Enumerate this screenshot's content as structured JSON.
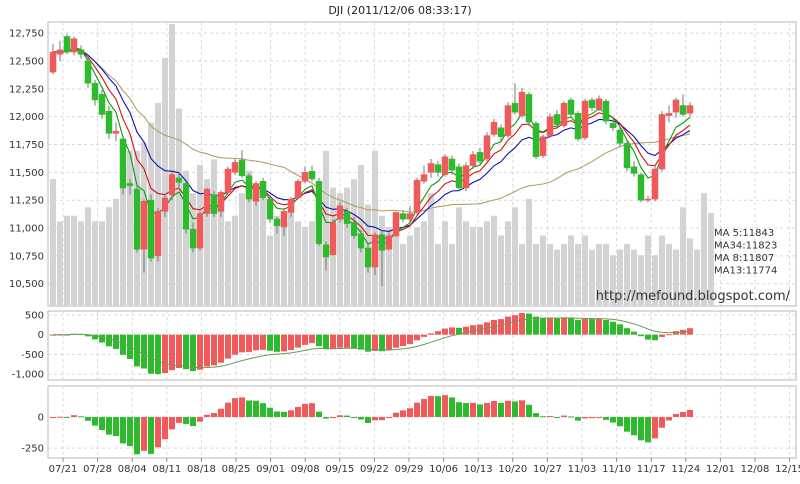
{
  "title": "DJI  (2011/12/06 08:33:17)",
  "watermark": "http://mefound.blogspot.com/",
  "colors": {
    "up": "#f05a5a",
    "down": "#2dbb2d",
    "volume": "#d3d3d3",
    "ma5": "#0a9a0a",
    "ma34": "#b4a068",
    "ma8": "#d01010",
    "ma13": "#1010b0",
    "grid": "#d8d8d8",
    "macd_line": "#6a9a5a"
  },
  "legend": [
    {
      "label": "MA  5:11843",
      "color": "#0a9a0a"
    },
    {
      "label": "MA34:11823",
      "color": "#b4a068"
    },
    {
      "label": "MA  8:11807",
      "color": "#d01010"
    },
    {
      "label": "MA13:11774",
      "color": "#1010b0"
    }
  ],
  "chart_data": [
    {
      "type": "candlestick",
      "name": "price",
      "y_ticks": [
        "12,750",
        "12,500",
        "12,250",
        "12,000",
        "11,750",
        "11,500",
        "11,250",
        "11,000",
        "10,750",
        "10,500"
      ],
      "ylim": [
        10300,
        12850
      ],
      "x_ticks": [
        "07/21",
        "07/28",
        "08/04",
        "08/11",
        "08/18",
        "08/25",
        "09/01",
        "09/08",
        "09/15",
        "09/22",
        "09/29",
        "10/06",
        "10/13",
        "10/20",
        "10/27",
        "11/03",
        "11/10",
        "11/17",
        "11/24",
        "12/01",
        "12/08",
        "12/15"
      ],
      "grid": true,
      "candles": [
        {
          "o": 12400,
          "c": 12580,
          "h": 12650,
          "l": 12380
        },
        {
          "o": 12560,
          "c": 12600,
          "h": 12680,
          "l": 12500
        },
        {
          "o": 12720,
          "c": 12580,
          "h": 12740,
          "l": 12560
        },
        {
          "o": 12580,
          "c": 12700,
          "h": 12720,
          "l": 12550
        },
        {
          "o": 12600,
          "c": 12560,
          "h": 12640,
          "l": 12520
        },
        {
          "o": 12500,
          "c": 12300,
          "h": 12540,
          "l": 12260
        },
        {
          "o": 12300,
          "c": 12150,
          "h": 12330,
          "l": 12100
        },
        {
          "o": 12200,
          "c": 12020,
          "h": 12240,
          "l": 11980
        },
        {
          "o": 12050,
          "c": 11850,
          "h": 12100,
          "l": 11800
        },
        {
          "o": 11850,
          "c": 11870,
          "h": 11950,
          "l": 11780
        },
        {
          "o": 11800,
          "c": 11360,
          "h": 11830,
          "l": 11300
        },
        {
          "o": 11400,
          "c": 11380,
          "h": 11440,
          "l": 11300
        },
        {
          "o": 11350,
          "c": 10810,
          "h": 11380,
          "l": 10780
        },
        {
          "o": 10810,
          "c": 11240,
          "h": 11260,
          "l": 10600
        },
        {
          "o": 11250,
          "c": 10730,
          "h": 11300,
          "l": 10700
        },
        {
          "o": 10750,
          "c": 11150,
          "h": 11180,
          "l": 10700
        },
        {
          "o": 11150,
          "c": 11270,
          "h": 11300,
          "l": 11100
        },
        {
          "o": 11300,
          "c": 11480,
          "h": 11500,
          "l": 11250
        },
        {
          "o": 11450,
          "c": 11410,
          "h": 11500,
          "l": 11350
        },
        {
          "o": 11400,
          "c": 10990,
          "h": 11420,
          "l": 10950
        },
        {
          "o": 10990,
          "c": 10820,
          "h": 11050,
          "l": 10780
        },
        {
          "o": 10820,
          "c": 11130,
          "h": 11150,
          "l": 10800
        },
        {
          "o": 11130,
          "c": 11350,
          "h": 11360,
          "l": 11100
        },
        {
          "o": 11300,
          "c": 11130,
          "h": 11330,
          "l": 11100
        },
        {
          "o": 11150,
          "c": 11320,
          "h": 11340,
          "l": 11100
        },
        {
          "o": 11320,
          "c": 11530,
          "h": 11550,
          "l": 11300
        },
        {
          "o": 11500,
          "c": 11590,
          "h": 11620,
          "l": 11480
        },
        {
          "o": 11610,
          "c": 11470,
          "h": 11700,
          "l": 11450
        },
        {
          "o": 11470,
          "c": 11260,
          "h": 11490,
          "l": 11230
        },
        {
          "o": 11240,
          "c": 11400,
          "h": 11420,
          "l": 11200
        },
        {
          "o": 11420,
          "c": 11270,
          "h": 11450,
          "l": 11250
        },
        {
          "o": 11260,
          "c": 11080,
          "h": 11300,
          "l": 11050
        },
        {
          "o": 11080,
          "c": 11020,
          "h": 11100,
          "l": 10950
        },
        {
          "o": 11010,
          "c": 11150,
          "h": 11180,
          "l": 10930
        },
        {
          "o": 11140,
          "c": 11260,
          "h": 11280,
          "l": 11100
        },
        {
          "o": 11270,
          "c": 11420,
          "h": 11440,
          "l": 11260
        },
        {
          "o": 11420,
          "c": 11500,
          "h": 11550,
          "l": 11400
        },
        {
          "o": 11510,
          "c": 11440,
          "h": 11560,
          "l": 11420
        },
        {
          "o": 11420,
          "c": 10860,
          "h": 11450,
          "l": 10840
        },
        {
          "o": 10850,
          "c": 10740,
          "h": 10880,
          "l": 10620
        },
        {
          "o": 10760,
          "c": 11050,
          "h": 11080,
          "l": 10750
        },
        {
          "o": 11080,
          "c": 11200,
          "h": 11230,
          "l": 11050
        },
        {
          "o": 11150,
          "c": 11040,
          "h": 11180,
          "l": 11000
        },
        {
          "o": 11050,
          "c": 10930,
          "h": 11100,
          "l": 10900
        },
        {
          "o": 10950,
          "c": 10820,
          "h": 10980,
          "l": 10780
        },
        {
          "o": 10820,
          "c": 10650,
          "h": 10850,
          "l": 10600
        },
        {
          "o": 10650,
          "c": 10940,
          "h": 10960,
          "l": 10580
        },
        {
          "o": 10940,
          "c": 10800,
          "h": 10980,
          "l": 10480
        },
        {
          "o": 10810,
          "c": 10930,
          "h": 10960,
          "l": 10800
        },
        {
          "o": 10930,
          "c": 11140,
          "h": 11150,
          "l": 10920
        },
        {
          "o": 11130,
          "c": 11080,
          "h": 11160,
          "l": 11050
        },
        {
          "o": 11080,
          "c": 11130,
          "h": 11200,
          "l": 11060
        },
        {
          "o": 11140,
          "c": 11430,
          "h": 11450,
          "l": 11120
        },
        {
          "o": 11420,
          "c": 11480,
          "h": 11560,
          "l": 11400
        },
        {
          "o": 11500,
          "c": 11580,
          "h": 11620,
          "l": 11450
        },
        {
          "o": 11570,
          "c": 11500,
          "h": 11600,
          "l": 11460
        },
        {
          "o": 11480,
          "c": 11640,
          "h": 11660,
          "l": 11460
        },
        {
          "o": 11620,
          "c": 11520,
          "h": 11650,
          "l": 11480
        },
        {
          "o": 11550,
          "c": 11360,
          "h": 11580,
          "l": 11330
        },
        {
          "o": 11360,
          "c": 11560,
          "h": 11590,
          "l": 11330
        },
        {
          "o": 11560,
          "c": 11660,
          "h": 11690,
          "l": 11530
        },
        {
          "o": 11680,
          "c": 11600,
          "h": 11720,
          "l": 11570
        },
        {
          "o": 11620,
          "c": 11830,
          "h": 11860,
          "l": 11600
        },
        {
          "o": 11840,
          "c": 11950,
          "h": 11980,
          "l": 11820
        },
        {
          "o": 11900,
          "c": 11820,
          "h": 11930,
          "l": 11780
        },
        {
          "o": 11830,
          "c": 12100,
          "h": 12130,
          "l": 11810
        },
        {
          "o": 12120,
          "c": 12040,
          "h": 12300,
          "l": 12020
        },
        {
          "o": 12010,
          "c": 12220,
          "h": 12260,
          "l": 11990
        },
        {
          "o": 12200,
          "c": 11950,
          "h": 12220,
          "l": 11920
        },
        {
          "o": 11940,
          "c": 11640,
          "h": 11960,
          "l": 11620
        },
        {
          "o": 11650,
          "c": 11820,
          "h": 11840,
          "l": 11630
        },
        {
          "o": 11830,
          "c": 12000,
          "h": 12030,
          "l": 11810
        },
        {
          "o": 12020,
          "c": 11930,
          "h": 12060,
          "l": 11900
        },
        {
          "o": 11920,
          "c": 12120,
          "h": 12140,
          "l": 11900
        },
        {
          "o": 12150,
          "c": 12020,
          "h": 12170,
          "l": 12000
        },
        {
          "o": 12030,
          "c": 11800,
          "h": 12050,
          "l": 11780
        },
        {
          "o": 11810,
          "c": 12140,
          "h": 12160,
          "l": 11790
        },
        {
          "o": 12150,
          "c": 12080,
          "h": 12170,
          "l": 12050
        },
        {
          "o": 12070,
          "c": 12160,
          "h": 12190,
          "l": 12050
        },
        {
          "o": 12140,
          "c": 11960,
          "h": 12160,
          "l": 11930
        },
        {
          "o": 11940,
          "c": 11900,
          "h": 11980,
          "l": 11870
        },
        {
          "o": 11880,
          "c": 11760,
          "h": 11910,
          "l": 11730
        },
        {
          "o": 11760,
          "c": 11540,
          "h": 11790,
          "l": 11510
        },
        {
          "o": 11550,
          "c": 11490,
          "h": 11600,
          "l": 11460
        },
        {
          "o": 11480,
          "c": 11250,
          "h": 11500,
          "l": 11230
        },
        {
          "o": 11250,
          "c": 11260,
          "h": 11290,
          "l": 11230
        },
        {
          "o": 11260,
          "c": 11530,
          "h": 11560,
          "l": 11240
        },
        {
          "o": 11530,
          "c": 12020,
          "h": 12050,
          "l": 11510
        },
        {
          "o": 12010,
          "c": 12030,
          "h": 12100,
          "l": 11950
        },
        {
          "o": 12040,
          "c": 12150,
          "h": 12170,
          "l": 11990
        },
        {
          "o": 12100,
          "c": 12020,
          "h": 12200,
          "l": 12000
        },
        {
          "o": 12030,
          "c": 12100,
          "h": 12130,
          "l": 12000
        }
      ],
      "volume_ratio": [
        0.45,
        0.3,
        0.32,
        0.32,
        0.3,
        0.35,
        0.3,
        0.3,
        0.35,
        0.38,
        0.55,
        0.55,
        0.55,
        0.58,
        0.65,
        0.72,
        0.88,
        1.0,
        0.7,
        0.48,
        0.4,
        0.5,
        0.45,
        0.52,
        0.4,
        0.3,
        0.32,
        0.4,
        0.48,
        0.42,
        0.38,
        0.25,
        0.32,
        0.32,
        0.38,
        0.3,
        0.28,
        0.3,
        0.25,
        0.55,
        0.42,
        0.4,
        0.42,
        0.45,
        0.5,
        0.36,
        0.55,
        0.32,
        0.28,
        0.3,
        0.22,
        0.25,
        0.28,
        0.3,
        0.4,
        0.22,
        0.3,
        0.22,
        0.35,
        0.3,
        0.28,
        0.28,
        0.3,
        0.32,
        0.25,
        0.3,
        0.35,
        0.22,
        0.38,
        0.22,
        0.25,
        0.22,
        0.2,
        0.22,
        0.25,
        0.22,
        0.25,
        0.2,
        0.22,
        0.22,
        0.18,
        0.2,
        0.22,
        0.2,
        0.18,
        0.25,
        0.18,
        0.25,
        0.22,
        0.2,
        0.35,
        0.24,
        0.2,
        0.4,
        0.33
      ],
      "legend_position": "right"
    },
    {
      "type": "bar",
      "name": "macd",
      "y_ticks": [
        "500",
        "0",
        "-500",
        "-1,000"
      ],
      "ylim": [
        -1150,
        600
      ]
    },
    {
      "type": "bar",
      "name": "oscillator",
      "y_ticks": [
        "0",
        "-250"
      ],
      "ylim": [
        -330,
        250
      ]
    }
  ]
}
